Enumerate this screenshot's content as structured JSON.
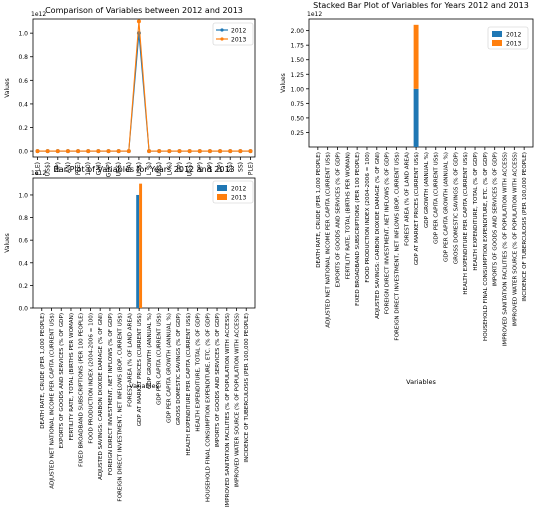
{
  "colors": {
    "s2012": "#1f77b4",
    "s2013": "#ff7f0e",
    "axis": "#000000"
  },
  "categories": [
    "DEATH RATE, CRUDE (PER 1,000 PEOPLE)",
    "ADJUSTED NET NATIONAL INCOME PER CAPITA (CURRENT US$)",
    "EXPORTS OF GOODS AND SERVICES (% OF GDP)",
    "FERTILITY RATE, TOTAL (BIRTHS PER WOMAN)",
    "FIXED BROADBAND SUBSCRIPTIONS (PER 100 PEOPLE)",
    "FOOD PRODUCTION INDEX (2004-2006 = 100)",
    "ADJUSTED SAVINGS: CARBON DIOXIDE DAMAGE (% OF GNI)",
    "FOREIGN DIRECT INVESTMENT, NET INFLOWS (% OF GDP)",
    "FOREIGN DIRECT INVESTMENT, NET INFLOWS (BOP, CURRENT US$)",
    "FOREST AREA (% OF LAND AREA)",
    "GDP AT MARKET PRICES (CURRENT US$)",
    "GDP GROWTH (ANNUAL %)",
    "GDP PER CAPITA (CURRENT US$)",
    "GDP PER CAPITA GROWTH (ANNUAL %)",
    "GROSS DOMESTIC SAVINGS (% OF GDP)",
    "HEALTH EXPENDITURE PER CAPITA (CURRENT US$)",
    "HEALTH EXPENDITURE, TOTAL (% OF GDP)",
    "HOUSEHOLD FINAL CONSUMPTION EXPENDITURE, ETC. (% OF GDP)",
    "IMPORTS OF GOODS AND SERVICES (% OF GDP)",
    "IMPROVED SANITATION FACILITIES (% OF POPULATION WITH ACCESS)",
    "IMPROVED WATER SOURCE (% OF POPULATION WITH ACCESS)",
    "INCIDENCE OF TUBERCULOSIS (PER 100,000 PEOPLE)"
  ],
  "chart_data": [
    {
      "type": "line",
      "title": "Comparison of Variables between 2012 and 2013",
      "xlabel": "",
      "ylabel": "Values",
      "offset_label": "1e12",
      "ylim": [
        -0.05,
        1.12
      ],
      "yticks": [
        "0.0",
        "0.2",
        "0.4",
        "0.6",
        "0.8",
        "1.0"
      ],
      "xtick_labels": [
        "PLE)",
        "US$)",
        "DP)",
        "AN)",
        "PLE)",
        "100)",
        "GNI)",
        "GDP)",
        "US$)",
        "EA)",
        "US$)",
        "L %)",
        "US$)",
        "L %)",
        "DP)",
        "US$)",
        "DP)",
        "DP)",
        "DP)",
        "SS)",
        "SS)",
        "PLE)"
      ],
      "legend": "top-right",
      "grid": false,
      "series": [
        {
          "name": "2012",
          "values": [
            0,
            0,
            0,
            0,
            0,
            0,
            0,
            0,
            0,
            0,
            1.0,
            0,
            0,
            0,
            0,
            0,
            0,
            0,
            0,
            0,
            0,
            0
          ]
        },
        {
          "name": "2013",
          "values": [
            0,
            0,
            0,
            0,
            0,
            0,
            0,
            0,
            0,
            0,
            1.1,
            0,
            0,
            0,
            0,
            0,
            0,
            0,
            0,
            0,
            0,
            0
          ]
        }
      ]
    },
    {
      "type": "bar",
      "stacked": true,
      "title": "Stacked Bar Plot of Variables for Years 2012 and 2013",
      "xlabel": "Variables",
      "ylabel": "Values",
      "offset_label": "1e12",
      "ylim": [
        0,
        2.2
      ],
      "yticks": [
        "0.25",
        "0.50",
        "0.75",
        "1.00",
        "1.25",
        "1.50",
        "1.75",
        "2.00"
      ],
      "legend": "top-right",
      "grid": false,
      "series": [
        {
          "name": "2012",
          "values": [
            0,
            0,
            0,
            0,
            0,
            0,
            0,
            0,
            0,
            0,
            1.0,
            0,
            0,
            0,
            0,
            0,
            0,
            0,
            0,
            0,
            0,
            0
          ]
        },
        {
          "name": "2013",
          "values": [
            0,
            0,
            0,
            0,
            0,
            0,
            0,
            0,
            0,
            0,
            1.1,
            0,
            0,
            0,
            0,
            0,
            0,
            0,
            0,
            0,
            0,
            0
          ]
        }
      ]
    },
    {
      "type": "bar",
      "title": "Bar Plot of Variables for Years 2012 and 2013",
      "xlabel": "Variables",
      "ylabel": "Values",
      "offset_label": "1e12",
      "ylim": [
        0,
        1.15
      ],
      "yticks": [
        "0.0",
        "0.2",
        "0.4",
        "0.6",
        "0.8",
        "1.0"
      ],
      "legend": "top-right",
      "grid": false,
      "series": [
        {
          "name": "2012",
          "values": [
            0,
            0,
            0,
            0,
            0,
            0,
            0,
            0,
            0,
            0,
            1.0,
            0,
            0,
            0,
            0,
            0,
            0,
            0,
            0,
            0,
            0,
            0
          ]
        },
        {
          "name": "2013",
          "values": [
            0,
            0,
            0,
            0,
            0,
            0,
            0,
            0,
            0,
            0,
            1.1,
            0,
            0,
            0,
            0,
            0,
            0,
            0,
            0,
            0,
            0,
            0
          ]
        }
      ]
    }
  ]
}
